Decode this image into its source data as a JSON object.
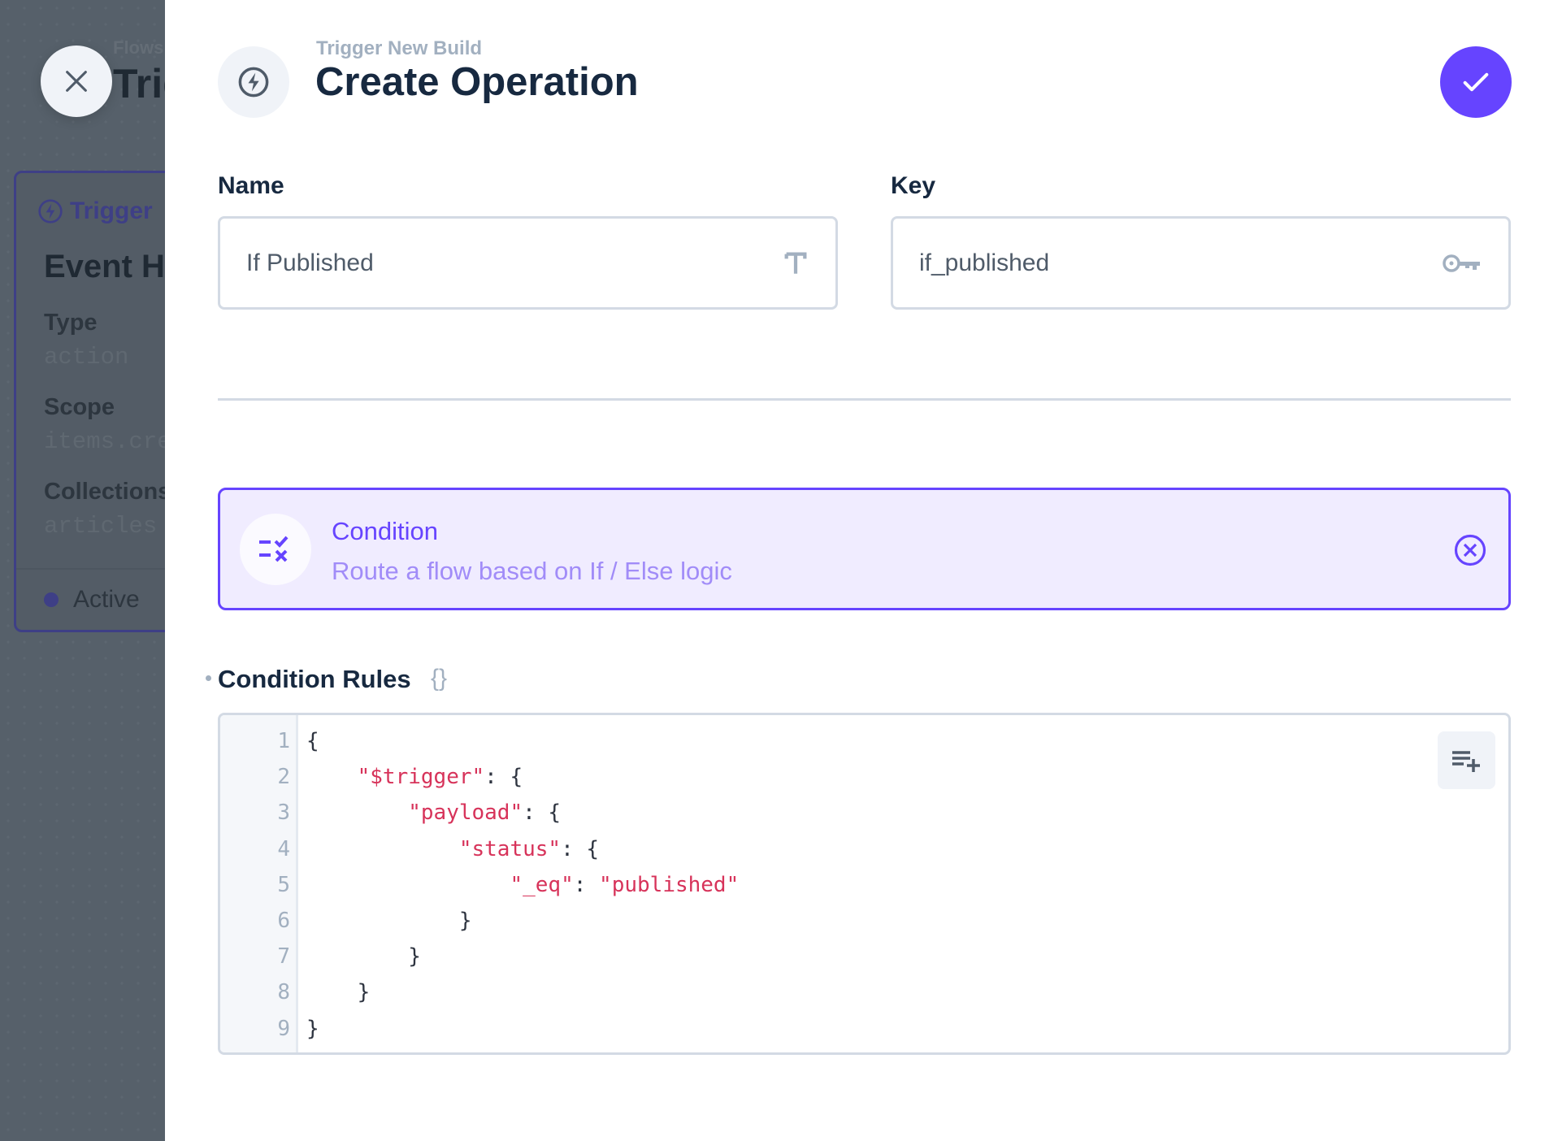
{
  "background": {
    "breadcrumb": "Flows",
    "title": "Trigger New Build",
    "card": {
      "trigger_label": "Trigger",
      "name": "Event Hook",
      "type_label": "Type",
      "type_value": "action",
      "scope_label": "Scope",
      "scope_value": "items.create",
      "collections_label": "Collections",
      "collections_value": "articles",
      "status": "Active"
    }
  },
  "drawer": {
    "breadcrumb": "Trigger New Build",
    "title": "Create Operation",
    "header_icon": "bolt-icon",
    "close_icon": "close-icon",
    "save_icon": "check-icon",
    "accent": "#6644ff"
  },
  "form": {
    "name": {
      "label": "Name",
      "value": "If Published",
      "icon": "text-icon"
    },
    "key": {
      "label": "Key",
      "value": "if_published",
      "icon": "key-icon"
    },
    "operation": {
      "title": "Condition",
      "description": "Route a flow based on If / Else logic",
      "icon": "condition-icon"
    },
    "rules": {
      "label": "Condition Rules",
      "type_icon": "{}",
      "lines": [
        [
          {
            "t": "{",
            "k": "p"
          }
        ],
        [
          {
            "t": "    ",
            "k": "p"
          },
          {
            "t": "\"$trigger\"",
            "k": "key"
          },
          {
            "t": ": {",
            "k": "p"
          }
        ],
        [
          {
            "t": "        ",
            "k": "p"
          },
          {
            "t": "\"payload\"",
            "k": "key"
          },
          {
            "t": ": {",
            "k": "p"
          }
        ],
        [
          {
            "t": "            ",
            "k": "p"
          },
          {
            "t": "\"status\"",
            "k": "key"
          },
          {
            "t": ": {",
            "k": "p"
          }
        ],
        [
          {
            "t": "                ",
            "k": "p"
          },
          {
            "t": "\"_eq\"",
            "k": "key"
          },
          {
            "t": ": ",
            "k": "p"
          },
          {
            "t": "\"published\"",
            "k": "str"
          }
        ],
        [
          {
            "t": "            }",
            "k": "p"
          }
        ],
        [
          {
            "t": "        }",
            "k": "p"
          }
        ],
        [
          {
            "t": "    }",
            "k": "p"
          }
        ],
        [
          {
            "t": "}",
            "k": "p"
          }
        ]
      ]
    }
  }
}
